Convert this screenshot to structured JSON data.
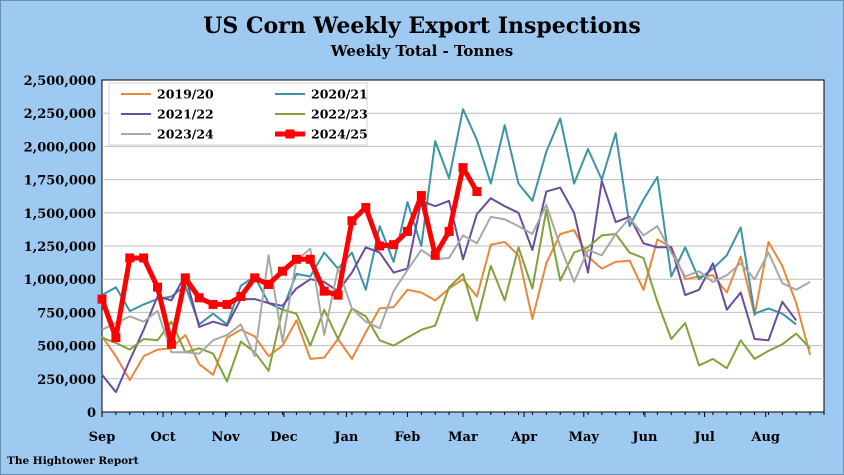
{
  "chart_data": {
    "type": "line",
    "title": "US Corn Weekly Export Inspections",
    "subtitle": "Weekly Total - Tonnes",
    "footer": "The Hightower Report",
    "xlabel": "",
    "ylabel": "",
    "ylim": [
      0,
      2500000
    ],
    "xlim": [
      0,
      52
    ],
    "y_ticks": [
      {
        "value": 0,
        "label": "0"
      },
      {
        "value": 250000,
        "label": "250,000"
      },
      {
        "value": 500000,
        "label": "500,000"
      },
      {
        "value": 750000,
        "label": "750,000"
      },
      {
        "value": 1000000,
        "label": "1,000,000"
      },
      {
        "value": 1250000,
        "label": "1,250,000"
      },
      {
        "value": 1500000,
        "label": "1,500,000"
      },
      {
        "value": 1750000,
        "label": "1,750,000"
      },
      {
        "value": 2000000,
        "label": "2,000,000"
      },
      {
        "value": 2250000,
        "label": "2,250,000"
      },
      {
        "value": 2500000,
        "label": "2,500,000"
      }
    ],
    "x_ticks": [
      {
        "value": 0,
        "label": "Sep"
      },
      {
        "value": 4.4,
        "label": "Oct"
      },
      {
        "value": 8.9,
        "label": "Nov"
      },
      {
        "value": 13.1,
        "label": "Dec"
      },
      {
        "value": 17.6,
        "label": "Jan"
      },
      {
        "value": 22.0,
        "label": "Feb"
      },
      {
        "value": 26.0,
        "label": "Mar"
      },
      {
        "value": 30.4,
        "label": "Apr"
      },
      {
        "value": 34.7,
        "label": "May"
      },
      {
        "value": 39.1,
        "label": "Jun"
      },
      {
        "value": 43.4,
        "label": "Jul"
      },
      {
        "value": 47.8,
        "label": "Aug"
      }
    ],
    "grid": true,
    "legend_position": "top-left",
    "series": [
      {
        "name": "2019/20",
        "color": "#e8883a",
        "width": 2,
        "markers": false,
        "values": [
          570000,
          420000,
          240000,
          420000,
          470000,
          480000,
          580000,
          360000,
          280000,
          560000,
          620000,
          570000,
          420000,
          500000,
          690000,
          400000,
          410000,
          550000,
          400000,
          600000,
          780000,
          790000,
          920000,
          900000,
          840000,
          930000,
          1000000,
          870000,
          1260000,
          1280000,
          1180000,
          700000,
          1120000,
          1340000,
          1370000,
          1170000,
          1080000,
          1130000,
          1140000,
          920000,
          1300000,
          1240000,
          1000000,
          1020000,
          1030000,
          900000,
          1170000,
          730000,
          1280000,
          1100000,
          820000,
          430000
        ]
      },
      {
        "name": "2020/21",
        "color": "#3b93a8",
        "width": 2,
        "markers": false,
        "values": [
          880000,
          940000,
          760000,
          810000,
          850000,
          870000,
          950000,
          660000,
          740000,
          660000,
          950000,
          1020000,
          820000,
          770000,
          1040000,
          1020000,
          1200000,
          1080000,
          1200000,
          920000,
          1400000,
          1130000,
          1580000,
          1250000,
          2040000,
          1760000,
          2280000,
          2050000,
          1720000,
          2160000,
          1720000,
          1590000,
          1960000,
          2210000,
          1720000,
          1980000,
          1750000,
          2100000,
          1400000,
          1600000,
          1770000,
          1020000,
          1240000,
          1000000,
          1080000,
          1180000,
          1390000,
          740000,
          780000,
          740000,
          660000
        ]
      },
      {
        "name": "2021/22",
        "color": "#6a4c9c",
        "width": 2,
        "markers": false,
        "values": [
          280000,
          150000,
          390000,
          620000,
          870000,
          840000,
          1030000,
          640000,
          680000,
          650000,
          850000,
          850000,
          820000,
          800000,
          930000,
          1000000,
          980000,
          910000,
          1050000,
          1240000,
          1200000,
          1050000,
          1080000,
          1590000,
          1550000,
          1590000,
          1150000,
          1490000,
          1610000,
          1550000,
          1500000,
          1220000,
          1660000,
          1690000,
          1500000,
          1050000,
          1740000,
          1430000,
          1470000,
          1270000,
          1240000,
          1240000,
          880000,
          920000,
          1120000,
          770000,
          900000,
          550000,
          540000,
          830000,
          690000
        ]
      },
      {
        "name": "2022/23",
        "color": "#7fa33a",
        "width": 2,
        "markers": false,
        "values": [
          560000,
          520000,
          470000,
          550000,
          540000,
          680000,
          450000,
          480000,
          440000,
          230000,
          530000,
          450000,
          310000,
          770000,
          740000,
          500000,
          770000,
          550000,
          780000,
          720000,
          540000,
          500000,
          560000,
          620000,
          650000,
          940000,
          1040000,
          690000,
          1100000,
          840000,
          1240000,
          930000,
          1520000,
          990000,
          1200000,
          1240000,
          1330000,
          1340000,
          1200000,
          1160000,
          830000,
          550000,
          670000,
          350000,
          400000,
          330000,
          540000,
          400000,
          460000,
          510000,
          590000,
          480000
        ]
      },
      {
        "name": "2023/24",
        "color": "#a8a8a8",
        "width": 2,
        "markers": false,
        "values": [
          620000,
          670000,
          720000,
          680000,
          760000,
          450000,
          450000,
          440000,
          540000,
          580000,
          660000,
          420000,
          1180000,
          530000,
          1140000,
          1230000,
          580000,
          1080000,
          780000,
          680000,
          630000,
          910000,
          1070000,
          1220000,
          1150000,
          1160000,
          1330000,
          1270000,
          1470000,
          1450000,
          1400000,
          1340000,
          1560000,
          1250000,
          980000,
          1220000,
          1180000,
          1340000,
          1460000,
          1330000,
          1400000,
          1200000,
          1020000,
          1060000,
          980000,
          1030000,
          1120000,
          1000000,
          1200000,
          970000,
          920000,
          980000
        ]
      },
      {
        "name": "2024/25",
        "color": "#ff0000",
        "width": 5,
        "markers": true,
        "values": [
          850000,
          560000,
          1160000,
          1160000,
          940000,
          510000,
          1010000,
          860000,
          810000,
          810000,
          870000,
          1010000,
          960000,
          1060000,
          1150000,
          1150000,
          910000,
          880000,
          1440000,
          1540000,
          1250000,
          1260000,
          1360000,
          1630000,
          1180000,
          1360000,
          1840000,
          1660000
        ]
      }
    ]
  }
}
